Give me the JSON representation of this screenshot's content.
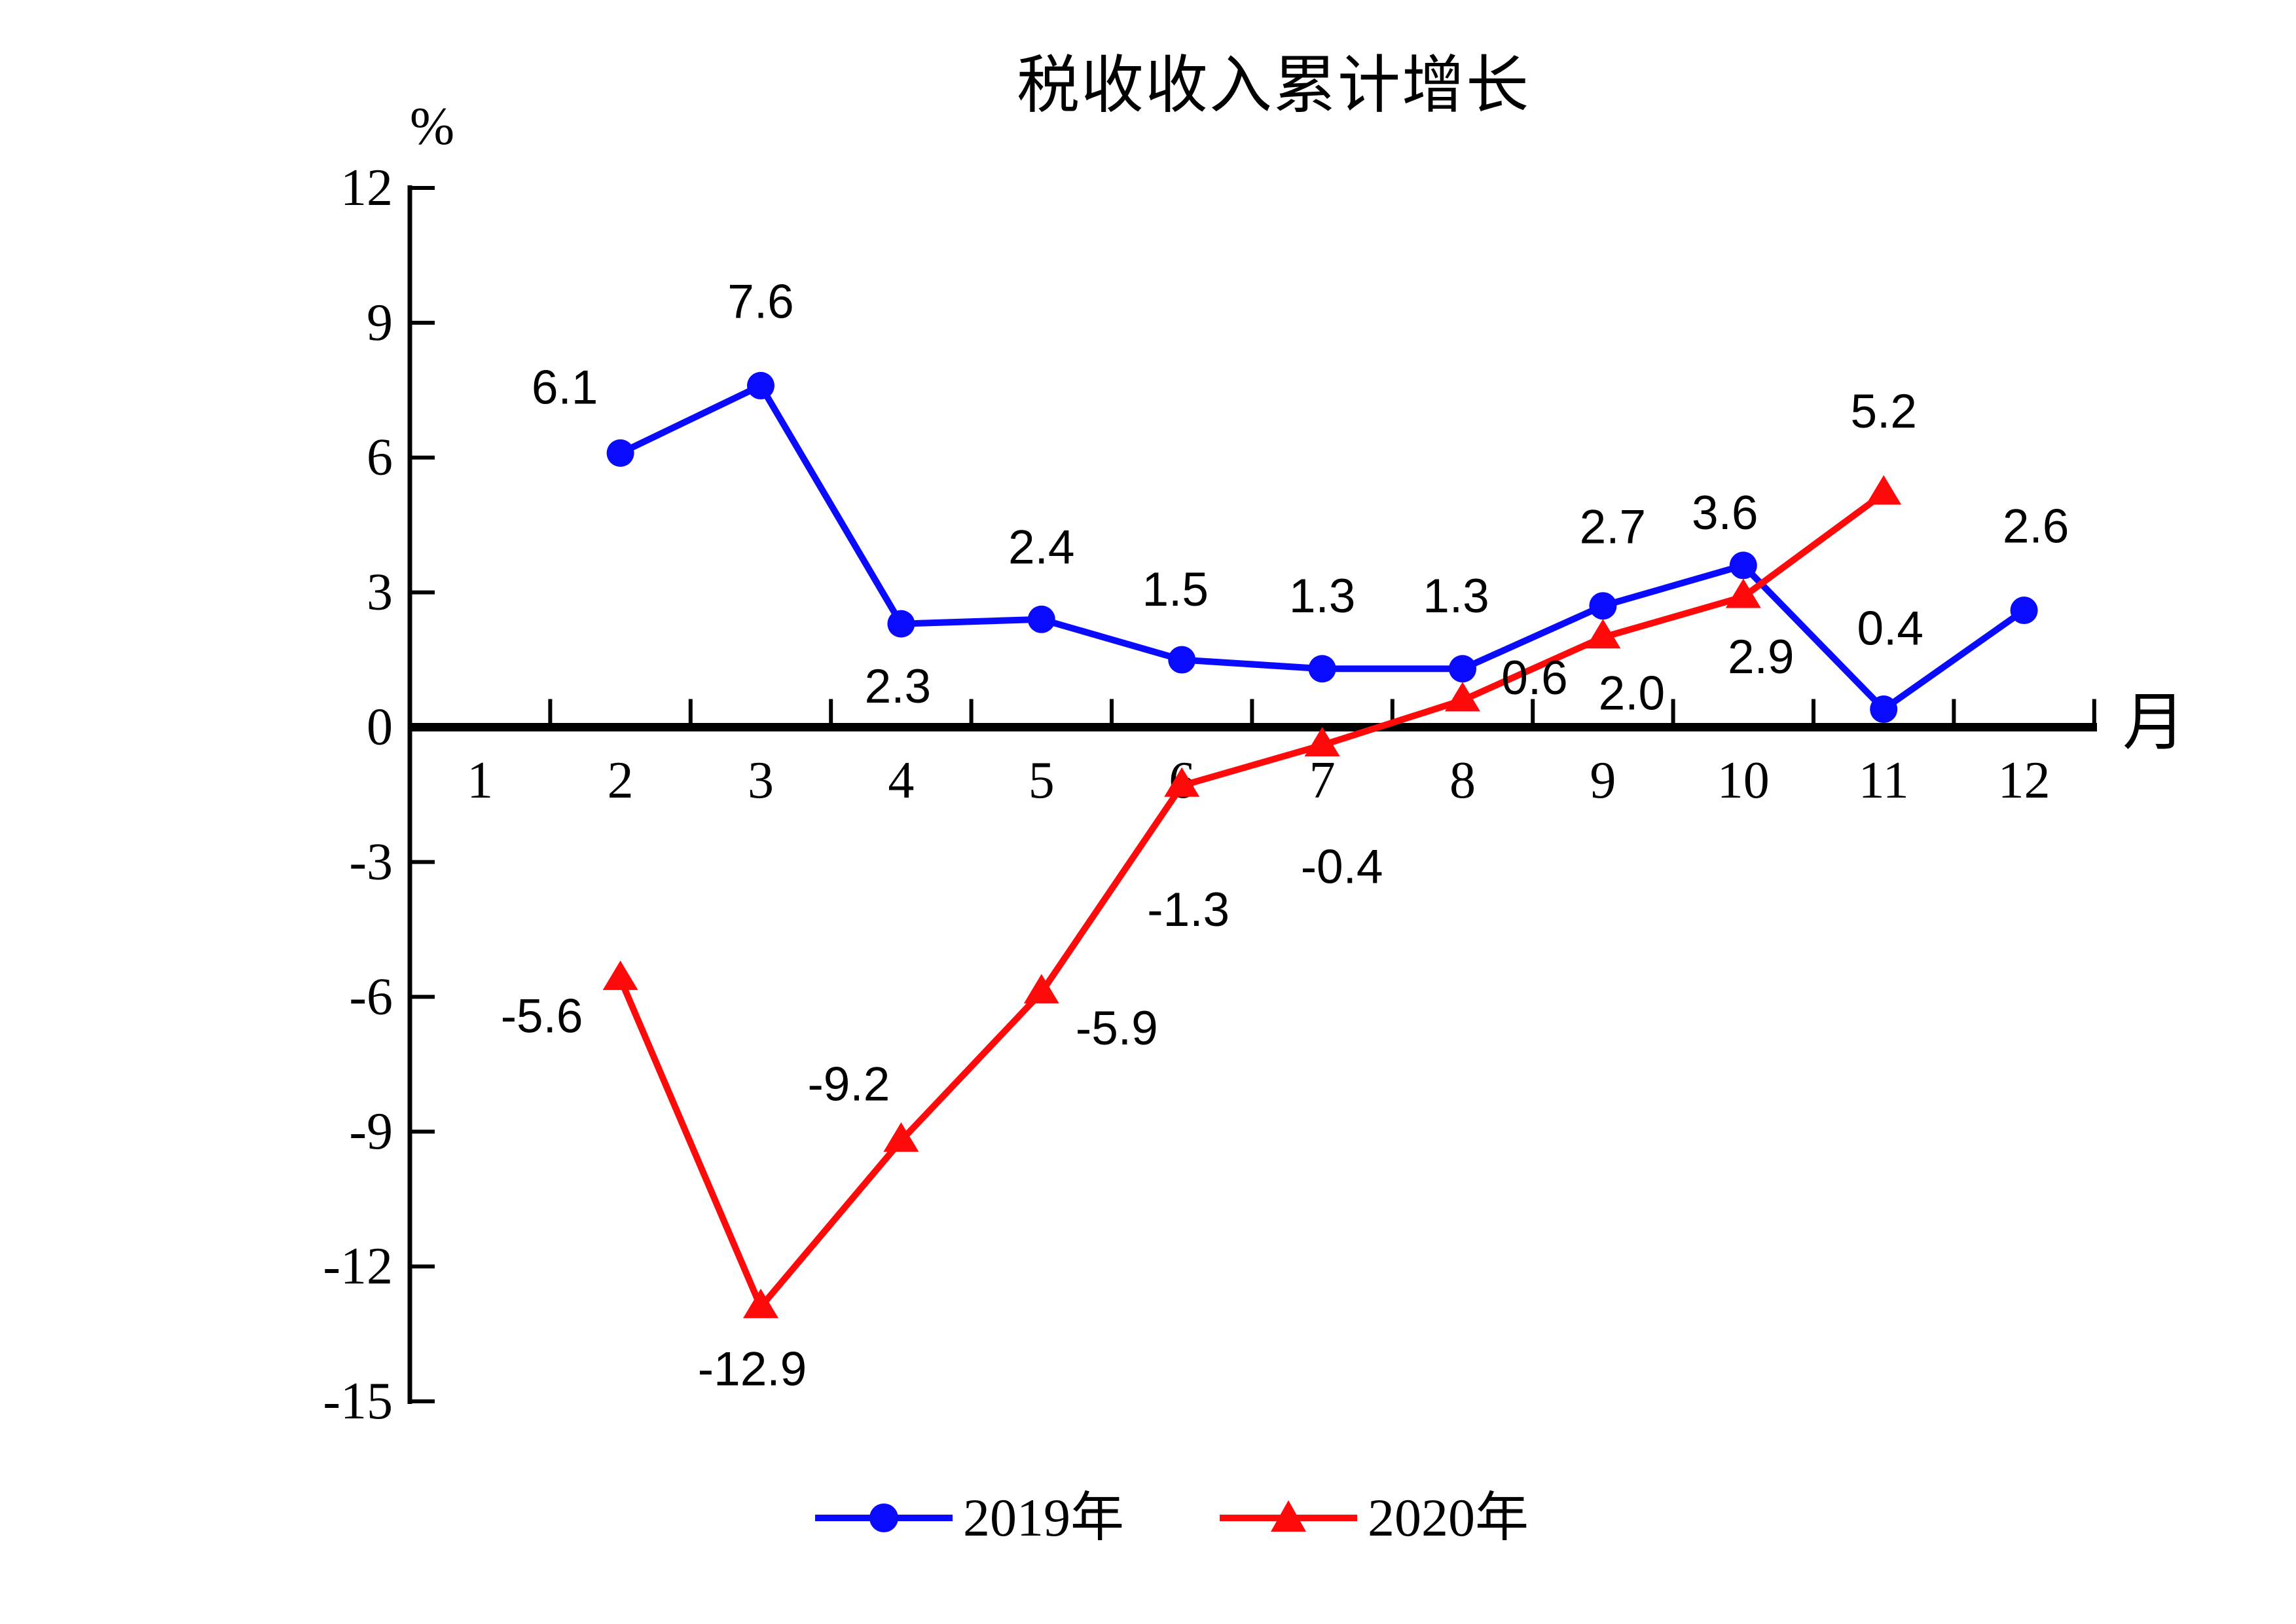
{
  "page": {
    "background": "#ffffff"
  },
  "chart_data": {
    "type": "line",
    "title": "税收收入累计增长",
    "y_unit_label": "%",
    "x_unit_label": "月",
    "x_categories": [
      "1",
      "2",
      "3",
      "4",
      "5",
      "6",
      "7",
      "8",
      "9",
      "10",
      "11",
      "12"
    ],
    "y_ticks": [
      12,
      9,
      6,
      3,
      0,
      -3,
      -6,
      -9,
      -12,
      -15
    ],
    "ylim": [
      -15,
      12
    ],
    "grid": false,
    "legend_position": "bottom-center",
    "axis_color": "#000000",
    "text_color": "#000000",
    "series": [
      {
        "name": "2019年",
        "color": "#0a0aff",
        "marker": "circle",
        "points": [
          {
            "month": 2,
            "value": 6.1,
            "label": "6.1",
            "label_dx": -85,
            "label_dy": -100
          },
          {
            "month": 3,
            "value": 7.6,
            "label": "7.6",
            "label_dx": 0,
            "label_dy": -128
          },
          {
            "month": 4,
            "value": 2.3,
            "label": "2.3",
            "label_dx": -5,
            "label_dy": 96
          },
          {
            "month": 5,
            "value": 2.4,
            "label": "2.4",
            "label_dx": 0,
            "label_dy": -110
          },
          {
            "month": 6,
            "value": 1.5,
            "label": "1.5",
            "label_dx": -10,
            "label_dy": -107
          },
          {
            "month": 7,
            "value": 1.3,
            "label": "1.3",
            "label_dx": 0,
            "label_dy": -111
          },
          {
            "month": 8,
            "value": 1.3,
            "label": "1.3",
            "label_dx": -10,
            "label_dy": -111
          },
          {
            "month": 9,
            "value": 2.7,
            "label": "2.7",
            "label_dx": 15,
            "label_dy": -120
          },
          {
            "month": 10,
            "value": 3.6,
            "label": "3.6",
            "label_dx": -28,
            "label_dy": -80
          },
          {
            "month": 11,
            "value": 0.4,
            "label": "0.4",
            "label_dx": 10,
            "label_dy": -123
          },
          {
            "month": 12,
            "value": 2.6,
            "label": "2.6",
            "label_dx": 18,
            "label_dy": -128
          }
        ]
      },
      {
        "name": "2020年",
        "color": "#ff0a0a",
        "marker": "triangle",
        "points": [
          {
            "month": 2,
            "value": -5.6,
            "label": "-5.6",
            "label_dx": -120,
            "label_dy": 57
          },
          {
            "month": 3,
            "value": -12.9,
            "label": "-12.9",
            "label_dx": -13,
            "label_dy": 95
          },
          {
            "month": 4,
            "value": -9.2,
            "label": "-9.2",
            "label_dx": -80,
            "label_dy": -86
          },
          {
            "month": 5,
            "value": -5.9,
            "label": "-5.9",
            "label_dx": 115,
            "label_dy": 55
          },
          {
            "month": 6,
            "value": -1.3,
            "label": "-1.3",
            "label_dx": 10,
            "label_dy": 190
          },
          {
            "month": 7,
            "value": -0.4,
            "label": "-0.4",
            "label_dx": 30,
            "label_dy": 186
          },
          {
            "month": 8,
            "value": 0.6,
            "label": "0.6",
            "label_dx": 110,
            "label_dy": -34
          },
          {
            "month": 9,
            "value": 2.0,
            "label": "2.0",
            "label_dx": 44,
            "label_dy": 86
          },
          {
            "month": 10,
            "value": 2.9,
            "label": "2.9",
            "label_dx": 27,
            "label_dy": 92
          },
          {
            "month": 11,
            "value": 5.2,
            "label": "5.2",
            "label_dx": 0,
            "label_dy": -125
          }
        ]
      }
    ]
  }
}
